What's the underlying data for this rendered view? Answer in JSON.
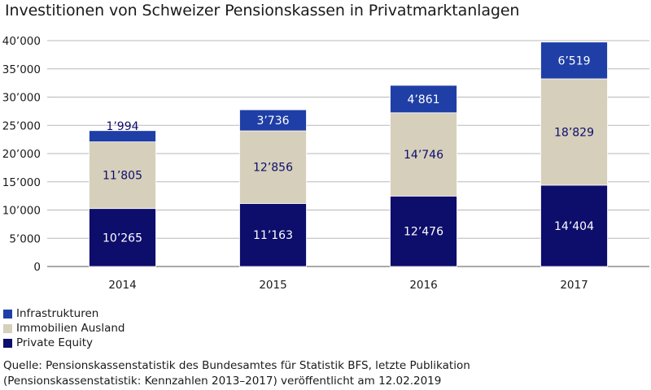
{
  "title": "Investitionen von Schweizer Pensionskassen in Privatmarktanlagen",
  "chart_data": {
    "type": "bar",
    "stacked": true,
    "categories": [
      "2014",
      "2015",
      "2016",
      "2017"
    ],
    "series": [
      {
        "name": "Private Equity",
        "color": "#0d0d6b",
        "values": [
          10265,
          11163,
          12476,
          14404
        ],
        "labels": [
          "10’265",
          "11’163",
          "12’476",
          "14’404"
        ]
      },
      {
        "name": "Immobilien Ausland",
        "color": "#d6cfbb",
        "values": [
          11805,
          12856,
          14746,
          18829
        ],
        "labels": [
          "11’805",
          "12’856",
          "14’746",
          "18’829"
        ]
      },
      {
        "name": "Infrastrukturen",
        "color": "#1f3fa6",
        "values": [
          1994,
          3736,
          4861,
          6519
        ],
        "labels": [
          "1’994",
          "3’736",
          "4’861",
          "6’519"
        ]
      }
    ],
    "ylim": [
      0,
      40000
    ],
    "yticks": [
      "0",
      "5’000",
      "10’000",
      "15’000",
      "20’000",
      "25’000",
      "30’000",
      "35’000",
      "40’000"
    ],
    "grid": true,
    "legend_position": "bottom-left"
  },
  "legend": [
    {
      "label": "Infrastrukturen",
      "color": "#1f3fa6"
    },
    {
      "label": "Immobilien Ausland",
      "color": "#d6cfbb"
    },
    {
      "label": "Private Equity",
      "color": "#0d0d6b"
    }
  ],
  "source": {
    "line1": "Quelle: Pensionskassenstatistik des Bundesamtes für Statistik BFS, letzte Publikation",
    "line2": "(Pensionskassenstatistik: Kennzahlen 2013–2017) veröffentlicht am 12.02.2019"
  }
}
